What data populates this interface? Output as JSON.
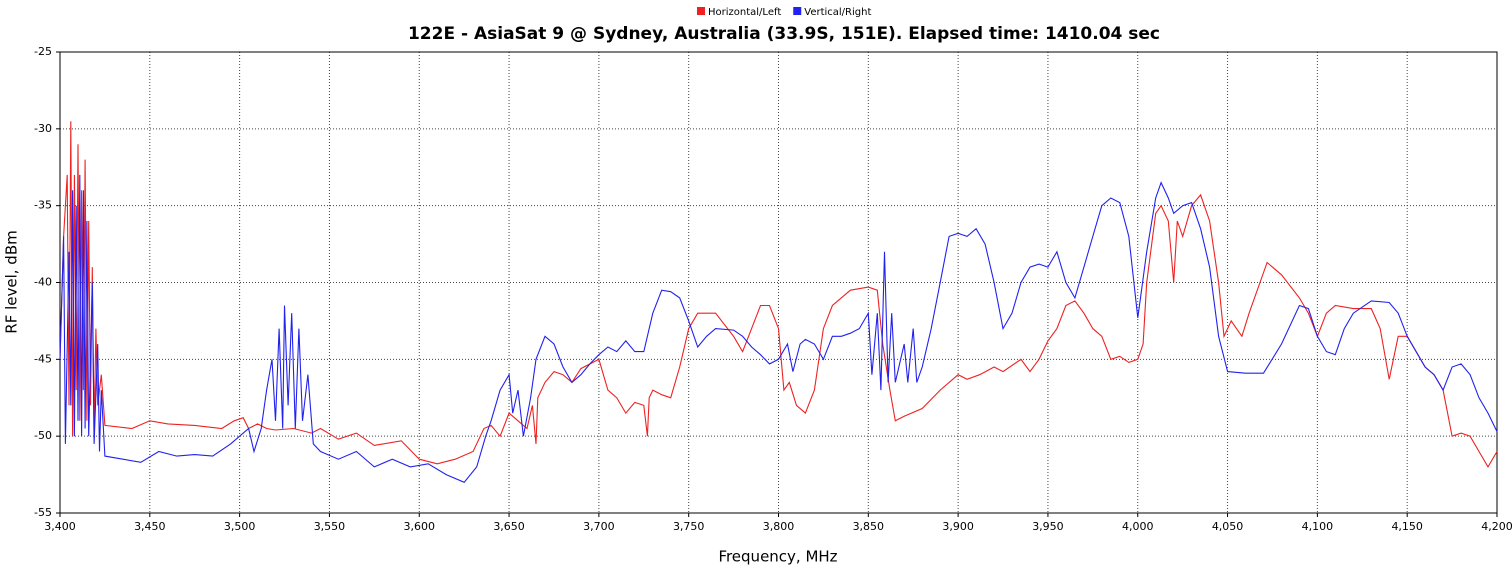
{
  "chart_data": {
    "type": "line",
    "title": "122E - AsiaSat 9 @ Sydney, Australia (33.9S, 151E). Elapsed time: 1410.04 sec",
    "x_label": "Frequency, MHz",
    "y_label": "RF level, dBm",
    "xlim": [
      3400,
      4200
    ],
    "ylim": [
      -55,
      -25
    ],
    "xticks": [
      {
        "value": 3400,
        "label": "3,400"
      },
      {
        "value": 3450,
        "label": "3,450"
      },
      {
        "value": 3500,
        "label": "3,500"
      },
      {
        "value": 3550,
        "label": "3,550"
      },
      {
        "value": 3600,
        "label": "3,600"
      },
      {
        "value": 3650,
        "label": "3,650"
      },
      {
        "value": 3700,
        "label": "3,700"
      },
      {
        "value": 3750,
        "label": "3,750"
      },
      {
        "value": 3800,
        "label": "3,800"
      },
      {
        "value": 3850,
        "label": "3,850"
      },
      {
        "value": 3900,
        "label": "3,900"
      },
      {
        "value": 3950,
        "label": "3,950"
      },
      {
        "value": 4000,
        "label": "4,000"
      },
      {
        "value": 4050,
        "label": "4,050"
      },
      {
        "value": 4100,
        "label": "4,100"
      },
      {
        "value": 4150,
        "label": "4,150"
      },
      {
        "value": 4200,
        "label": "4,200"
      }
    ],
    "yticks": [
      -55,
      -50,
      -45,
      -40,
      -35,
      -30,
      -25
    ],
    "grid": true,
    "legend": "top",
    "series": [
      {
        "name": "Horizontal/Left",
        "color": "#ee2222",
        "x": [
          3400,
          3402,
          3404,
          3405,
          3406,
          3407,
          3408,
          3409,
          3410,
          3411,
          3412,
          3413,
          3414,
          3415,
          3416,
          3417,
          3418,
          3419,
          3420,
          3421,
          3423,
          3425,
          3440,
          3450,
          3460,
          3475,
          3490,
          3497,
          3502,
          3505,
          3510,
          3515,
          3520,
          3530,
          3540,
          3545,
          3555,
          3565,
          3575,
          3590,
          3600,
          3610,
          3620,
          3630,
          3636,
          3640,
          3645,
          3650,
          3655,
          3660,
          3663,
          3665,
          3666,
          3670,
          3675,
          3680,
          3685,
          3690,
          3700,
          3705,
          3710,
          3715,
          3720,
          3725,
          3727,
          3728,
          3730,
          3735,
          3740,
          3745,
          3750,
          3755,
          3765,
          3775,
          3780,
          3785,
          3790,
          3795,
          3800,
          3803,
          3806,
          3810,
          3815,
          3820,
          3825,
          3830,
          3840,
          3850,
          3855,
          3858,
          3862,
          3865,
          3870,
          3880,
          3890,
          3900,
          3905,
          3912,
          3920,
          3925,
          3935,
          3940,
          3945,
          3950,
          3955,
          3960,
          3965,
          3970,
          3975,
          3980,
          3985,
          3990,
          3995,
          4000,
          4003,
          4005,
          4010,
          4013,
          4017,
          4020,
          4022,
          4025,
          4030,
          4035,
          4040,
          4045,
          4048,
          4052,
          4055,
          4058,
          4062,
          4065,
          4072,
          4080,
          4090,
          4095,
          4100,
          4105,
          4110,
          4120,
          4130,
          4135,
          4140,
          4145,
          4150,
          4160,
          4165,
          4170,
          4175,
          4180,
          4185,
          4190,
          4195,
          4200
        ],
        "values": [
          -45,
          -37,
          -33,
          -48,
          -29.5,
          -50,
          -33,
          -47,
          -31,
          -49,
          -34,
          -47,
          -32,
          -49,
          -36,
          -48,
          -39,
          -50,
          -43,
          -48,
          -46,
          -49.3,
          -49.5,
          -49,
          -49.2,
          -49.3,
          -49.5,
          -49,
          -48.8,
          -49.5,
          -49.2,
          -49.5,
          -49.6,
          -49.5,
          -49.8,
          -49.5,
          -50.2,
          -49.8,
          -50.6,
          -50.3,
          -51.5,
          -51.8,
          -51.5,
          -51,
          -49.5,
          -49.3,
          -50,
          -48.5,
          -49,
          -49.5,
          -48,
          -50.5,
          -47.5,
          -46.5,
          -45.8,
          -46,
          -46.5,
          -45.6,
          -45,
          -47,
          -47.5,
          -48.5,
          -47.8,
          -48,
          -50,
          -47.5,
          -47,
          -47.3,
          -47.5,
          -45.5,
          -43,
          -42,
          -42,
          -43.5,
          -44.5,
          -43,
          -41.5,
          -41.5,
          -43,
          -47,
          -46.5,
          -48,
          -48.5,
          -47,
          -43,
          -41.5,
          -40.5,
          -40.3,
          -40.5,
          -44,
          -47,
          -49,
          -48.7,
          -48.2,
          -47,
          -46,
          -46.3,
          -46,
          -45.5,
          -45.8,
          -45,
          -45.8,
          -45,
          -43.8,
          -43,
          -41.5,
          -41.2,
          -42,
          -43,
          -43.5,
          -45,
          -44.8,
          -45.2,
          -45,
          -44,
          -40,
          -35.5,
          -35,
          -36,
          -40,
          -36,
          -37,
          -35,
          -34.3,
          -36,
          -40,
          -43.5,
          -42.5,
          -43,
          -43.5,
          -42,
          -41,
          -38.7,
          -39.5,
          -41,
          -42,
          -43.5,
          -42,
          -41.5,
          -41.7,
          -41.7,
          -43,
          -46.3,
          -43.5,
          -43.5,
          -45.5,
          -46,
          -47,
          -50,
          -49.8,
          -50,
          -51,
          -52,
          -51
        ]
      },
      {
        "name": "Vertical/Right",
        "color": "#2222ee",
        "x": [
          3400,
          3402,
          3403,
          3405,
          3406,
          3407,
          3408,
          3409,
          3410,
          3411,
          3412,
          3413,
          3414,
          3415,
          3416,
          3418,
          3419,
          3421,
          3422,
          3423,
          3425,
          3435,
          3445,
          3455,
          3465,
          3475,
          3485,
          3495,
          3500,
          3505,
          3508,
          3512,
          3515,
          3518,
          3520,
          3522,
          3524,
          3525,
          3527,
          3529,
          3531,
          3533,
          3535,
          3538,
          3541,
          3545,
          3555,
          3565,
          3575,
          3585,
          3595,
          3605,
          3615,
          3625,
          3632,
          3637,
          3640,
          3645,
          3650,
          3652,
          3655,
          3658,
          3662,
          3665,
          3670,
          3675,
          3680,
          3685,
          3690,
          3695,
          3700,
          3705,
          3710,
          3715,
          3720,
          3725,
          3730,
          3735,
          3740,
          3745,
          3750,
          3755,
          3760,
          3765,
          3775,
          3780,
          3785,
          3790,
          3795,
          3800,
          3805,
          3808,
          3812,
          3815,
          3820,
          3825,
          3830,
          3835,
          3840,
          3845,
          3850,
          3852,
          3855,
          3857,
          3859,
          3861,
          3863,
          3865,
          3870,
          3872,
          3875,
          3877,
          3880,
          3885,
          3890,
          3895,
          3900,
          3905,
          3910,
          3915,
          3920,
          3925,
          3930,
          3935,
          3940,
          3945,
          3950,
          3955,
          3960,
          3965,
          3970,
          3975,
          3980,
          3985,
          3990,
          3995,
          4000,
          4005,
          4010,
          4013,
          4017,
          4020,
          4025,
          4030,
          4035,
          4040,
          4045,
          4050,
          4060,
          4070,
          4080,
          4090,
          4095,
          4100,
          4105,
          4110,
          4115,
          4120,
          4130,
          4140,
          4145,
          4150,
          4160,
          4165,
          4170,
          4175,
          4180,
          4185,
          4190,
          4195,
          4200
        ],
        "values": [
          -45,
          -37,
          -50.5,
          -38,
          -48,
          -34,
          -50,
          -35,
          -49,
          -33,
          -50,
          -34,
          -49.5,
          -36,
          -50,
          -40,
          -50.5,
          -44,
          -51,
          -47,
          -51.3,
          -51.5,
          -51.7,
          -51,
          -51.3,
          -51.2,
          -51.3,
          -50.5,
          -50,
          -49.5,
          -51,
          -49.5,
          -47,
          -45,
          -49,
          -43,
          -49.5,
          -41.5,
          -48,
          -42,
          -49.5,
          -43,
          -49,
          -46,
          -50.5,
          -51,
          -51.5,
          -51,
          -52,
          -51.5,
          -52,
          -51.8,
          -52.5,
          -53,
          -52,
          -50,
          -49,
          -47,
          -46,
          -48.5,
          -47,
          -50,
          -47.5,
          -45,
          -43.5,
          -44,
          -45.5,
          -46.5,
          -46,
          -45.3,
          -44.7,
          -44.2,
          -44.5,
          -43.8,
          -44.5,
          -44.5,
          -42,
          -40.5,
          -40.6,
          -41,
          -42.5,
          -44.2,
          -43.5,
          -43,
          -43.1,
          -43.5,
          -44.2,
          -44.7,
          -45.3,
          -45,
          -44,
          -45.8,
          -44,
          -43.7,
          -44,
          -45,
          -43.5,
          -43.5,
          -43.3,
          -43,
          -42,
          -46,
          -42,
          -47,
          -38,
          -46.5,
          -42,
          -46.5,
          -44,
          -46.5,
          -43,
          -46.5,
          -45.5,
          -43,
          -40,
          -37,
          -36.8,
          -37,
          -36.5,
          -37.5,
          -40,
          -43,
          -42,
          -40,
          -39,
          -38.8,
          -39,
          -38,
          -40,
          -41,
          -39,
          -37,
          -35,
          -34.5,
          -34.8,
          -37,
          -42.3,
          -38,
          -34.5,
          -33.5,
          -34.5,
          -35.5,
          -35,
          -34.8,
          -36.5,
          -39,
          -43.5,
          -45.8,
          -45.9,
          -45.9,
          -44,
          -41.5,
          -41.7,
          -43.5,
          -44.5,
          -44.7,
          -43,
          -42,
          -41.2,
          -41.3,
          -42,
          -43.5,
          -45.5,
          -46,
          -47,
          -45.5,
          -45.3,
          -46,
          -47.5,
          -48.5,
          -49.7
        ]
      }
    ]
  }
}
